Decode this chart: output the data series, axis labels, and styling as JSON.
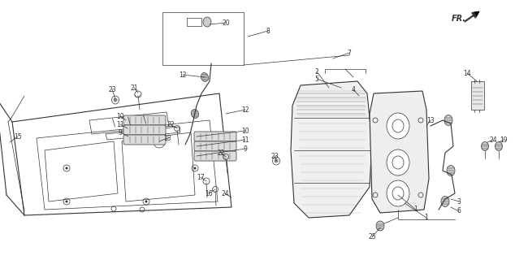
{
  "bg_color": "#ffffff",
  "line_color": "#333333",
  "fig_width": 6.34,
  "fig_height": 3.2,
  "dpi": 100
}
